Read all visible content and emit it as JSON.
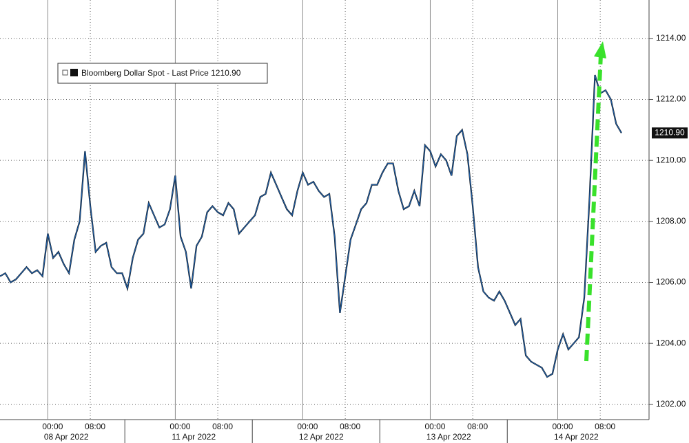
{
  "chart_data": {
    "type": "line",
    "categories": [
      null,
      null,
      null,
      null,
      null,
      null,
      null,
      null,
      null,
      "00:00",
      null,
      null,
      null,
      null,
      null,
      null,
      null,
      "08:00",
      null,
      null,
      null,
      null,
      null,
      null,
      null,
      null,
      null,
      null,
      null,
      null,
      null,
      null,
      null,
      "00:00",
      null,
      null,
      null,
      null,
      null,
      null,
      null,
      "08:00",
      null,
      null,
      null,
      null,
      null,
      null,
      null,
      null,
      null,
      null,
      null,
      null,
      null,
      null,
      null,
      "00:00",
      null,
      null,
      null,
      null,
      null,
      null,
      null,
      "08:00",
      null,
      null,
      null,
      null,
      null,
      null,
      null,
      null,
      null,
      null,
      null,
      null,
      null,
      null,
      null,
      "00:00",
      null,
      null,
      null,
      null,
      null,
      null,
      null,
      "08:00",
      null,
      null,
      null,
      null,
      null,
      null,
      null,
      null,
      null,
      null,
      null,
      null,
      null,
      null,
      null,
      "00:00",
      null,
      null,
      null,
      null,
      null,
      null,
      null,
      "08:00",
      null,
      null,
      null,
      null
    ],
    "dates": [
      "08 Apr 2022",
      "11 Apr 2022",
      "12 Apr 2022",
      "13 Apr 2022",
      "14 Apr 2022"
    ],
    "series": [
      {
        "name": "Bloomberg Dollar Spot - Last Price",
        "last_label": "1210.90",
        "color": "#1f5fa8",
        "values": [
          1206.2,
          1206.3,
          1206.0,
          1206.1,
          1206.3,
          1206.5,
          1206.3,
          1206.4,
          1206.2,
          1207.6,
          1206.8,
          1207.0,
          1206.6,
          1206.3,
          1207.4,
          1208.0,
          1210.3,
          1208.5,
          1207.0,
          1207.2,
          1207.3,
          1206.5,
          1206.3,
          1206.3,
          1205.8,
          1206.8,
          1207.4,
          1207.6,
          1208.6,
          1208.2,
          1207.8,
          1207.9,
          1208.4,
          1209.5,
          1207.5,
          1207.0,
          1205.8,
          1207.2,
          1207.5,
          1208.3,
          1208.5,
          1208.3,
          1208.2,
          1208.6,
          1208.4,
          1207.6,
          1207.8,
          1208.0,
          1208.2,
          1208.8,
          1208.9,
          1209.6,
          1209.2,
          1208.8,
          1208.4,
          1208.2,
          1209.0,
          1209.6,
          1209.2,
          1209.3,
          1209.0,
          1208.8,
          1208.9,
          1207.5,
          1205.0,
          1206.2,
          1207.4,
          1207.9,
          1208.4,
          1208.6,
          1209.2,
          1209.2,
          1209.6,
          1209.9,
          1209.9,
          1209.0,
          1208.4,
          1208.5,
          1209.0,
          1208.5,
          1210.5,
          1210.3,
          1209.8,
          1210.2,
          1210.0,
          1209.5,
          1210.8,
          1211.0,
          1210.2,
          1208.5,
          1206.5,
          1205.7,
          1205.5,
          1205.4,
          1205.7,
          1205.4,
          1205.0,
          1204.6,
          1204.8,
          1203.6,
          1203.4,
          1203.3,
          1203.2,
          1202.9,
          1203.0,
          1203.8,
          1204.3,
          1203.8,
          1204.0,
          1204.2,
          1205.5,
          1208.8,
          1212.8,
          1212.2,
          1212.3,
          1212.0,
          1211.2,
          1210.9
        ]
      }
    ],
    "ylim": [
      1201.5,
      1215.26
    ],
    "yticks": [
      {
        "value": 1202,
        "label": "1202.00"
      },
      {
        "value": 1204,
        "label": "1204.00"
      },
      {
        "value": 1206,
        "label": "1206.00"
      },
      {
        "value": 1208,
        "label": "1208.00"
      },
      {
        "value": 1210,
        "label": "1210.00"
      },
      {
        "value": 1212,
        "label": "1212.00"
      },
      {
        "value": 1214,
        "label": "1214.00"
      }
    ],
    "grid": true
  }
}
